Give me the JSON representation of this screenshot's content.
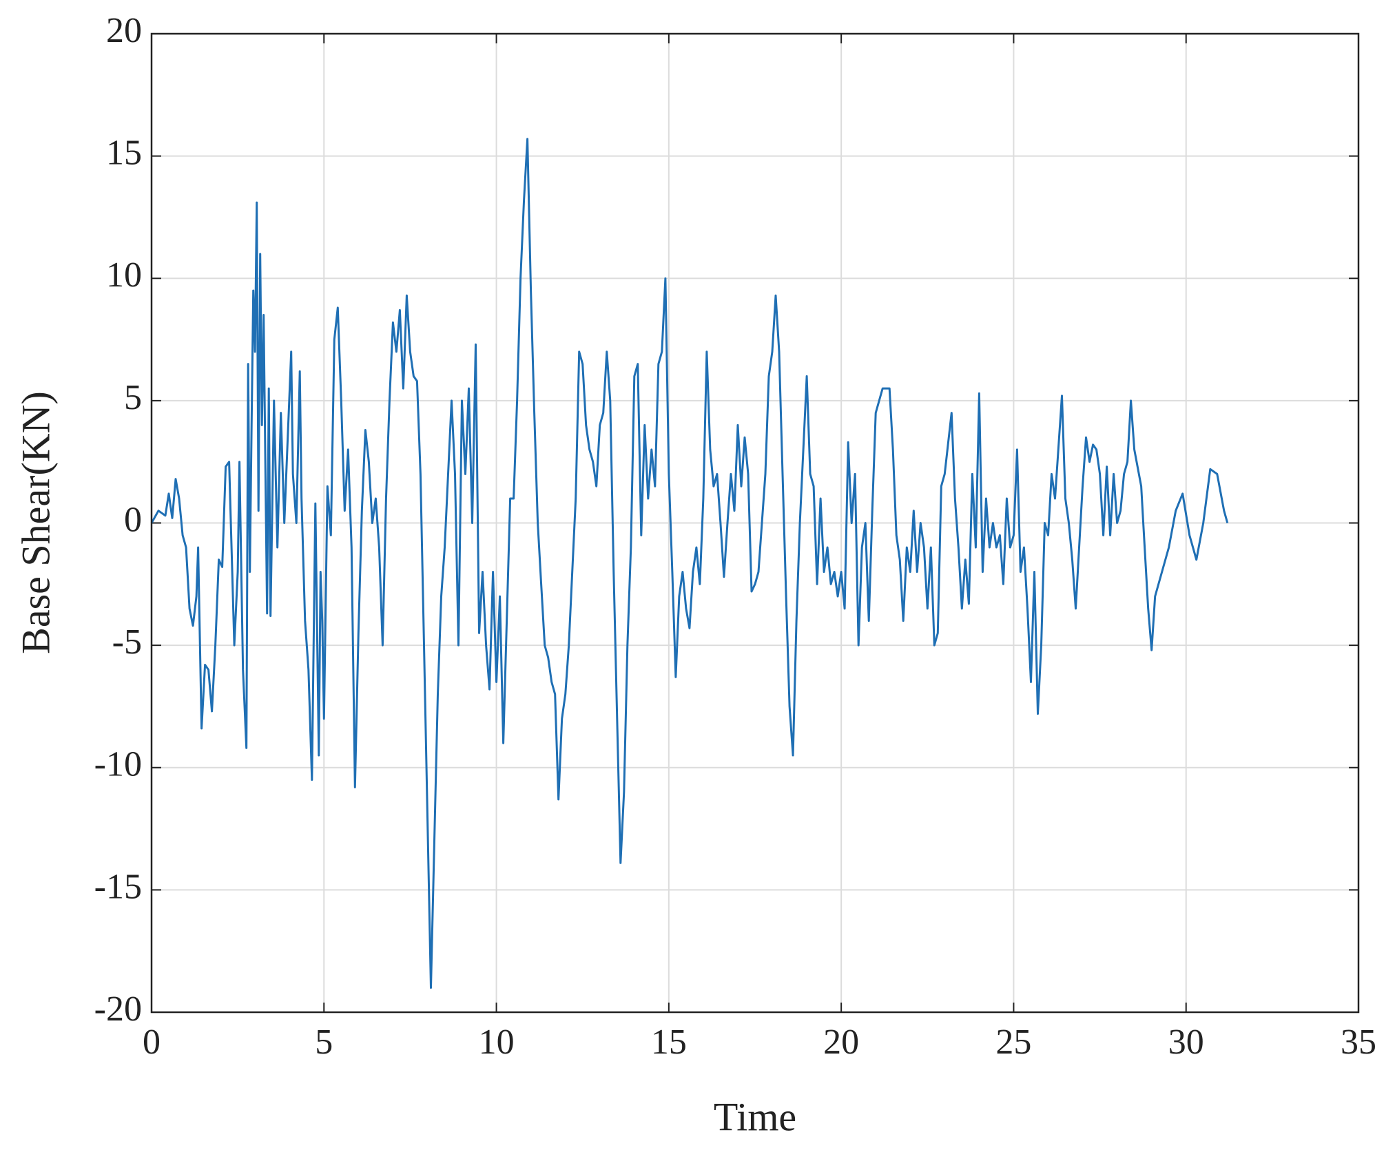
{
  "chart_data": {
    "type": "line",
    "x_label": "Time",
    "y_label": "Base Shear(KN)",
    "color": "#1f6fb4",
    "grid": true,
    "xlim": [
      0,
      35
    ],
    "xticks": [
      0,
      5,
      10,
      15,
      20,
      25,
      30,
      35
    ],
    "ylim": [
      -20,
      20
    ],
    "yticks": [
      -20,
      -15,
      -10,
      -5,
      0,
      5,
      10,
      15,
      20
    ],
    "x": [
      0,
      0.2,
      0.4,
      0.5,
      0.6,
      0.7,
      0.8,
      0.9,
      1.0,
      1.1,
      1.2,
      1.3,
      1.35,
      1.45,
      1.55,
      1.65,
      1.75,
      1.85,
      1.95,
      2.05,
      2.15,
      2.25,
      2.3,
      2.4,
      2.5,
      2.55,
      2.65,
      2.75,
      2.8,
      2.85,
      2.9,
      2.95,
      3.0,
      3.05,
      3.1,
      3.15,
      3.2,
      3.25,
      3.35,
      3.4,
      3.45,
      3.55,
      3.65,
      3.75,
      3.85,
      3.95,
      4.05,
      4.1,
      4.2,
      4.3,
      4.35,
      4.45,
      4.55,
      4.65,
      4.75,
      4.85,
      4.9,
      4.95,
      5.0,
      5.1,
      5.2,
      5.3,
      5.4,
      5.5,
      5.6,
      5.7,
      5.8,
      5.9,
      6.0,
      6.1,
      6.2,
      6.3,
      6.4,
      6.5,
      6.6,
      6.7,
      6.8,
      6.9,
      7.0,
      7.1,
      7.2,
      7.3,
      7.4,
      7.5,
      7.6,
      7.7,
      7.8,
      7.9,
      8.0,
      8.1,
      8.2,
      8.3,
      8.4,
      8.5,
      8.6,
      8.7,
      8.8,
      8.9,
      9.0,
      9.1,
      9.2,
      9.3,
      9.4,
      9.5,
      9.6,
      9.7,
      9.8,
      9.9,
      10.0,
      10.1,
      10.2,
      10.3,
      10.4,
      10.5,
      10.6,
      10.7,
      10.8,
      10.9,
      11.0,
      11.1,
      11.2,
      11.3,
      11.4,
      11.5,
      11.6,
      11.7,
      11.8,
      11.9,
      12.0,
      12.1,
      12.2,
      12.3,
      12.4,
      12.5,
      12.6,
      12.7,
      12.8,
      12.9,
      13.0,
      13.1,
      13.2,
      13.3,
      13.4,
      13.5,
      13.6,
      13.7,
      13.8,
      13.9,
      14.0,
      14.1,
      14.2,
      14.3,
      14.4,
      14.5,
      14.6,
      14.7,
      14.8,
      14.9,
      15.0,
      15.1,
      15.2,
      15.3,
      15.4,
      15.5,
      15.6,
      15.7,
      15.8,
      15.9,
      16.0,
      16.1,
      16.2,
      16.3,
      16.4,
      16.5,
      16.6,
      16.7,
      16.8,
      16.9,
      17.0,
      17.1,
      17.2,
      17.3,
      17.4,
      17.5,
      17.6,
      17.7,
      17.8,
      17.9,
      18.0,
      18.1,
      18.2,
      18.3,
      18.4,
      18.5,
      18.6,
      18.7,
      18.8,
      18.9,
      19.0,
      19.1,
      19.2,
      19.3,
      19.4,
      19.5,
      19.6,
      19.7,
      19.8,
      19.9,
      20.0,
      20.1,
      20.2,
      20.3,
      20.4,
      20.5,
      20.6,
      20.7,
      20.8,
      20.9,
      21.0,
      21.2,
      21.4,
      21.5,
      21.6,
      21.7,
      21.8,
      21.9,
      22.0,
      22.1,
      22.2,
      22.3,
      22.4,
      22.5,
      22.6,
      22.7,
      22.8,
      22.9,
      23.0,
      23.2,
      23.3,
      23.4,
      23.5,
      23.6,
      23.7,
      23.8,
      23.9,
      24.0,
      24.1,
      24.2,
      24.3,
      24.4,
      24.5,
      24.6,
      24.7,
      24.8,
      24.9,
      25.0,
      25.1,
      25.2,
      25.3,
      25.4,
      25.5,
      25.6,
      25.7,
      25.8,
      25.9,
      26.0,
      26.1,
      26.2,
      26.4,
      26.5,
      26.6,
      26.7,
      26.8,
      26.9,
      27.0,
      27.1,
      27.2,
      27.3,
      27.4,
      27.5,
      27.6,
      27.7,
      27.8,
      27.9,
      28.0,
      28.1,
      28.2,
      28.3,
      28.4,
      28.5,
      28.7,
      28.8,
      28.9,
      29.0,
      29.1,
      29.3,
      29.5,
      29.7,
      29.9,
      30.1,
      30.3,
      30.5,
      30.7,
      30.9,
      31.1,
      31.2
    ],
    "values": [
      0,
      0.5,
      0.3,
      1.2,
      0.2,
      1.8,
      1,
      -0.5,
      -1,
      -3.5,
      -4.2,
      -3,
      -1,
      -8.4,
      -5.8,
      -6,
      -7.7,
      -5,
      -1.5,
      -1.8,
      2.3,
      2.5,
      0,
      -5,
      -2,
      2.5,
      -6,
      -9.2,
      6.5,
      -2,
      4,
      9.5,
      7,
      13.1,
      0.5,
      11,
      4,
      8.5,
      -3.7,
      5.5,
      -3.8,
      5,
      -1,
      4.5,
      0,
      3.5,
      7,
      2,
      0,
      6.2,
      1,
      -4,
      -6,
      -10.5,
      0.8,
      -9.5,
      -2,
      -4,
      -8,
      1.5,
      -0.5,
      7.5,
      8.8,
      5,
      0.5,
      3,
      -1,
      -10.8,
      -4.5,
      0.5,
      3.8,
      2.5,
      0,
      1,
      -1,
      -5,
      1,
      5,
      8.2,
      7,
      8.7,
      5.5,
      9.3,
      7,
      6,
      5.8,
      2,
      -5,
      -12,
      -19,
      -13,
      -7,
      -3,
      -1,
      2,
      5,
      2,
      -5,
      5,
      2,
      5.5,
      0,
      7.3,
      -4.5,
      -2,
      -5,
      -6.8,
      -2,
      -6.5,
      -3,
      -9,
      -4,
      1,
      1,
      5,
      10,
      13.2,
      15.7,
      9.5,
      4.5,
      0,
      -2.5,
      -5,
      -5.5,
      -6.5,
      -7,
      -11.3,
      -8,
      -7,
      -5,
      -2,
      1,
      7,
      6.5,
      4,
      3,
      2.5,
      1.5,
      4,
      4.5,
      7,
      5,
      -2,
      -8,
      -13.9,
      -11,
      -5,
      -1,
      6,
      6.5,
      -0.5,
      4,
      1,
      3,
      1.5,
      6.5,
      7,
      10,
      2,
      -2,
      -6.3,
      -3,
      -2,
      -3.5,
      -4.3,
      -2,
      -1,
      -2.5,
      1,
      7,
      3,
      1.5,
      2,
      0,
      -2.2,
      0,
      2,
      0.5,
      4,
      1.5,
      3.5,
      2,
      -2.8,
      -2.5,
      -2,
      0,
      2,
      6,
      7,
      9.3,
      7,
      2,
      -3,
      -7.5,
      -9.5,
      -4,
      0,
      3,
      6,
      2,
      1.5,
      -2.5,
      1,
      -2,
      -1,
      -2.5,
      -2,
      -3,
      -2,
      -3.5,
      3.3,
      0,
      2,
      -5,
      -1,
      0,
      -4,
      0.5,
      4.5,
      5.5,
      5.5,
      3,
      -0.5,
      -1.5,
      -4,
      -1,
      -2,
      0.5,
      -2,
      0,
      -1,
      -3.5,
      -1,
      -5,
      -4.5,
      1.5,
      2,
      4.5,
      1,
      -1,
      -3.5,
      -1.5,
      -3.3,
      2,
      -1,
      5.3,
      -2,
      1,
      -1,
      0,
      -1,
      -0.5,
      -2.5,
      1,
      -1,
      -0.5,
      3,
      -2,
      -1,
      -3.5,
      -6.5,
      -2,
      -7.8,
      -5,
      0,
      -0.5,
      2,
      1,
      5.2,
      1,
      0,
      -1.5,
      -3.5,
      -1,
      1.5,
      3.5,
      2.5,
      3.2,
      3,
      2,
      -0.5,
      2.3,
      -0.5,
      2,
      0,
      0.5,
      2,
      2.5,
      5,
      3,
      1.5,
      -1,
      -3.5,
      -5.2,
      -3,
      -2,
      -1,
      0.5,
      1.2,
      -0.5,
      -1.5,
      0,
      2.2,
      2,
      0.5,
      0
    ]
  }
}
